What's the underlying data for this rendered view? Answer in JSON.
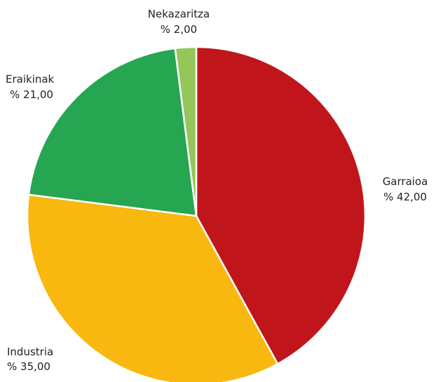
{
  "chart_data": {
    "type": "pie",
    "slices": [
      {
        "name": "Garraioa",
        "label": "% 42,00",
        "value": 42,
        "color": "#c0161b"
      },
      {
        "name": "Industria",
        "label": "% 35,00",
        "value": 35,
        "color": "#f9b80f"
      },
      {
        "name": "Eraikinak",
        "label": "% 21,00",
        "value": 21,
        "color": "#27a651"
      },
      {
        "name": "Nekazaritza",
        "label": "% 2,00",
        "value": 2,
        "color": "#95c659"
      }
    ]
  }
}
